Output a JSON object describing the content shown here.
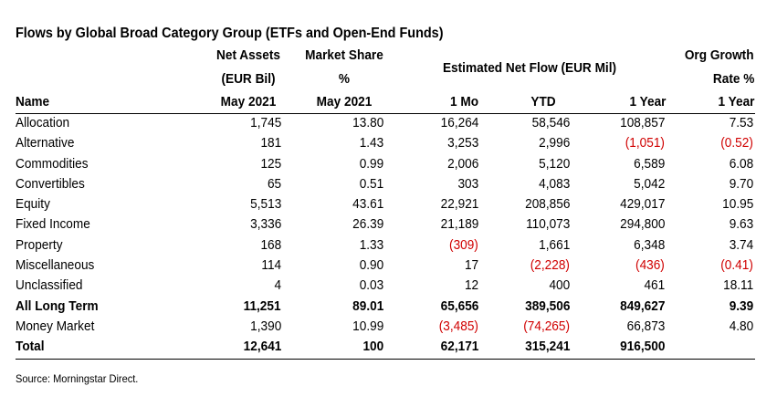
{
  "title": "Flows by Global Broad Category Group (ETFs and Open-End Funds)",
  "headers": {
    "name": "Name",
    "net_assets_1": "Net Assets",
    "net_assets_2": "(EUR Bil)",
    "net_assets_3": "May 2021",
    "market_share_1": "Market Share",
    "market_share_2": "%",
    "market_share_3": "May 2021",
    "est_flow": "Estimated Net Flow (EUR Mil)",
    "mo": "1 Mo",
    "ytd": "YTD",
    "year": "1 Year",
    "org_1": "Org Growth",
    "org_2": "Rate %",
    "org_3": "1 Year"
  },
  "rows": [
    {
      "name": "Allocation",
      "net_assets": "1,745",
      "market_share": "13.80",
      "flow_1mo": "16,264",
      "flow_ytd": "58,546",
      "flow_1yr": "108,857",
      "org_growth": "7.53",
      "bold": false
    },
    {
      "name": "Alternative",
      "net_assets": "181",
      "market_share": "1.43",
      "flow_1mo": "3,253",
      "flow_ytd": "2,996",
      "flow_1yr": "(1,051)",
      "org_growth": "(0.52)",
      "bold": false
    },
    {
      "name": "Commodities",
      "net_assets": "125",
      "market_share": "0.99",
      "flow_1mo": "2,006",
      "flow_ytd": "5,120",
      "flow_1yr": "6,589",
      "org_growth": "6.08",
      "bold": false
    },
    {
      "name": "Convertibles",
      "net_assets": "65",
      "market_share": "0.51",
      "flow_1mo": "303",
      "flow_ytd": "4,083",
      "flow_1yr": "5,042",
      "org_growth": "9.70",
      "bold": false
    },
    {
      "name": "Equity",
      "net_assets": "5,513",
      "market_share": "43.61",
      "flow_1mo": "22,921",
      "flow_ytd": "208,856",
      "flow_1yr": "429,017",
      "org_growth": "10.95",
      "bold": false
    },
    {
      "name": "Fixed Income",
      "net_assets": "3,336",
      "market_share": "26.39",
      "flow_1mo": "21,189",
      "flow_ytd": "110,073",
      "flow_1yr": "294,800",
      "org_growth": "9.63",
      "bold": false
    },
    {
      "name": "Property",
      "net_assets": "168",
      "market_share": "1.33",
      "flow_1mo": "(309)",
      "flow_ytd": "1,661",
      "flow_1yr": "6,348",
      "org_growth": "3.74",
      "bold": false
    },
    {
      "name": "Miscellaneous",
      "net_assets": "114",
      "market_share": "0.90",
      "flow_1mo": "17",
      "flow_ytd": "(2,228)",
      "flow_1yr": "(436)",
      "org_growth": "(0.41)",
      "bold": false
    },
    {
      "name": "Unclassified",
      "net_assets": "4",
      "market_share": "0.03",
      "flow_1mo": "12",
      "flow_ytd": "400",
      "flow_1yr": "461",
      "org_growth": "18.11",
      "bold": false
    },
    {
      "name": "All Long Term",
      "net_assets": "11,251",
      "market_share": "89.01",
      "flow_1mo": "65,656",
      "flow_ytd": "389,506",
      "flow_1yr": "849,627",
      "org_growth": "9.39",
      "bold": true
    },
    {
      "name": "Money Market",
      "net_assets": "1,390",
      "market_share": "10.99",
      "flow_1mo": "(3,485)",
      "flow_ytd": "(74,265)",
      "flow_1yr": "66,873",
      "org_growth": "4.80",
      "bold": false
    },
    {
      "name": "Total",
      "net_assets": "12,641",
      "market_share": "100",
      "flow_1mo": "62,171",
      "flow_ytd": "315,241",
      "flow_1yr": "916,500",
      "org_growth": "",
      "bold": true
    }
  ],
  "source": "Source: Morningstar Direct.",
  "colors": {
    "negative": "#d00000",
    "text": "#000000"
  }
}
